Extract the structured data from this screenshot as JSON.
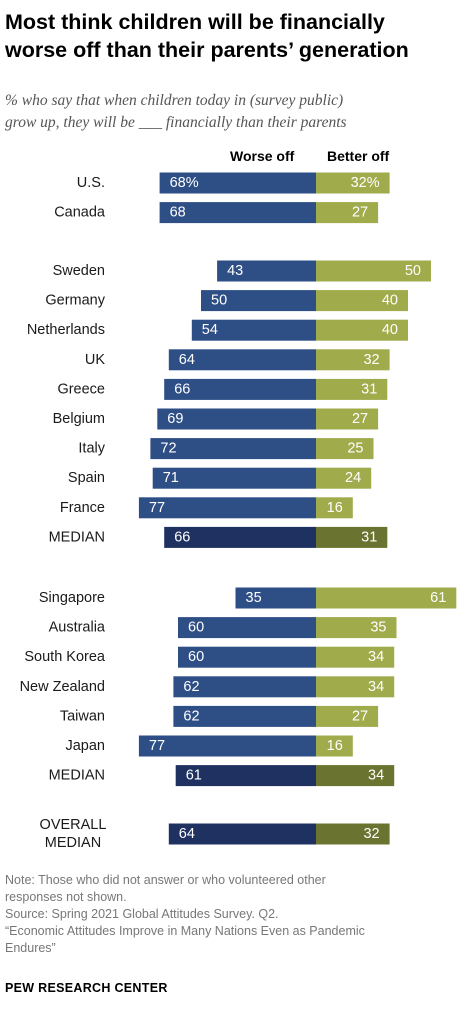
{
  "title_line1": "Most think children will be financially",
  "title_line2": "worse off than their parents’ generation",
  "subtitle_line1": "% who say that when children today in (survey public)",
  "subtitle_line2": "grow up, they will be ___ financially than their parents",
  "colors": {
    "worse": "#2e4e86",
    "better": "#a0ab4b",
    "worse_median": "#1e3160",
    "better_median": "#6a7330"
  },
  "chart_data": {
    "type": "bar",
    "orientation": "diverging-horizontal",
    "series_names": [
      "Worse off",
      "Better off"
    ],
    "groups": [
      {
        "rows": [
          {
            "label": "U.S.",
            "worse": 68,
            "better": 32,
            "worse_label": "68%",
            "better_label": "32%"
          },
          {
            "label": "Canada",
            "worse": 68,
            "better": 27
          }
        ]
      },
      {
        "rows": [
          {
            "label": "Sweden",
            "worse": 43,
            "better": 50
          },
          {
            "label": "Germany",
            "worse": 50,
            "better": 40
          },
          {
            "label": "Netherlands",
            "worse": 54,
            "better": 40
          },
          {
            "label": "UK",
            "worse": 64,
            "better": 32
          },
          {
            "label": "Greece",
            "worse": 66,
            "better": 31
          },
          {
            "label": "Belgium",
            "worse": 69,
            "better": 27
          },
          {
            "label": "Italy",
            "worse": 72,
            "better": 25
          },
          {
            "label": "Spain",
            "worse": 71,
            "better": 24
          },
          {
            "label": "France",
            "worse": 77,
            "better": 16
          },
          {
            "label": "MEDIAN",
            "worse": 66,
            "better": 31,
            "median": true
          }
        ]
      },
      {
        "rows": [
          {
            "label": "Singapore",
            "worse": 35,
            "better": 61
          },
          {
            "label": "Australia",
            "worse": 60,
            "better": 35
          },
          {
            "label": "South Korea",
            "worse": 60,
            "better": 34
          },
          {
            "label": "New Zealand",
            "worse": 62,
            "better": 34
          },
          {
            "label": "Taiwan",
            "worse": 62,
            "better": 27
          },
          {
            "label": "Japan",
            "worse": 77,
            "better": 16
          },
          {
            "label": "MEDIAN",
            "worse": 61,
            "better": 34,
            "median": true
          }
        ]
      },
      {
        "rows": [
          {
            "label": "OVERALL MEDIAN",
            "label_lines": [
              "OVERALL",
              "MEDIAN"
            ],
            "worse": 64,
            "better": 32,
            "median": true
          }
        ]
      }
    ]
  },
  "note_lines": [
    "Note: Those who did not answer or who volunteered other",
    "responses not shown.",
    "Source: Spring 2021 Global Attitudes Survey. Q2.",
    "“Economic Attitudes Improve in Many Nations Even as Pandemic",
    "Endures”"
  ],
  "brand": "PEW RESEARCH CENTER"
}
